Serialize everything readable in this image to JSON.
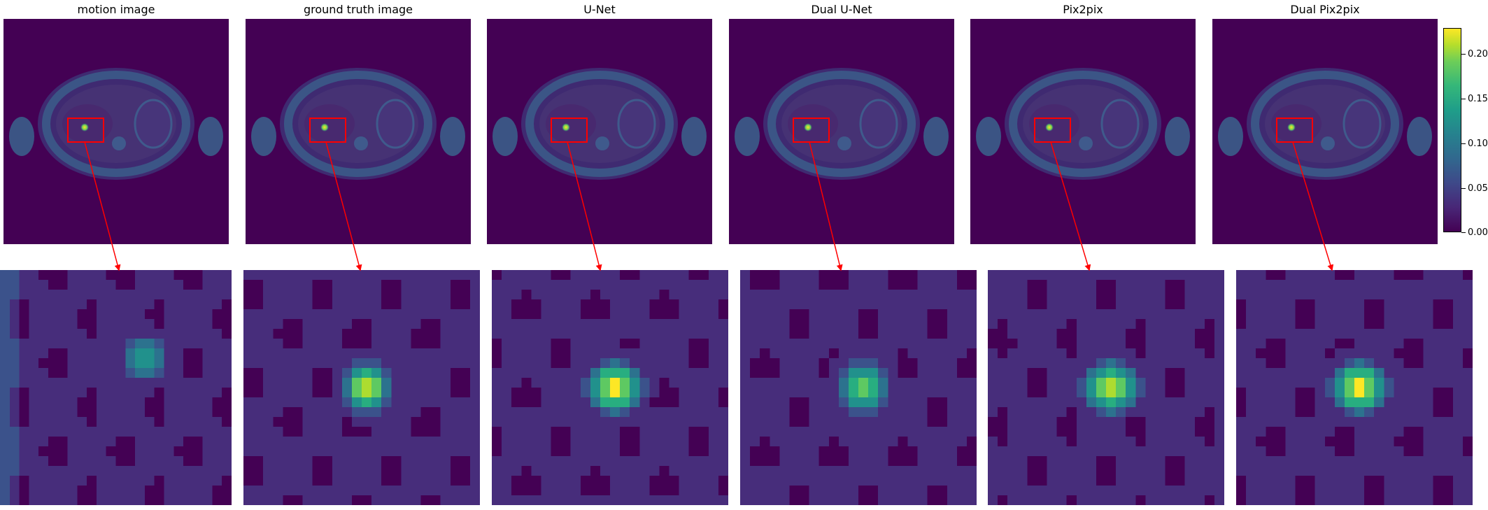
{
  "figure": {
    "titles": [
      "motion image",
      "ground truth image",
      "U-Net",
      "Dual U-Net",
      "Pix2pix",
      "Dual Pix2pix"
    ],
    "colormap": "viridis",
    "colorbar": {
      "ticks": [
        "0.00",
        "0.05",
        "0.10",
        "0.15",
        "0.20"
      ],
      "range": [
        0.0,
        0.23
      ]
    },
    "colors": {
      "background": "#440154",
      "tissue": "#3b5d8a",
      "roi_box": "#ff0000",
      "arrow": "#ff0000",
      "lesion_peak": "#fde725"
    }
  }
}
